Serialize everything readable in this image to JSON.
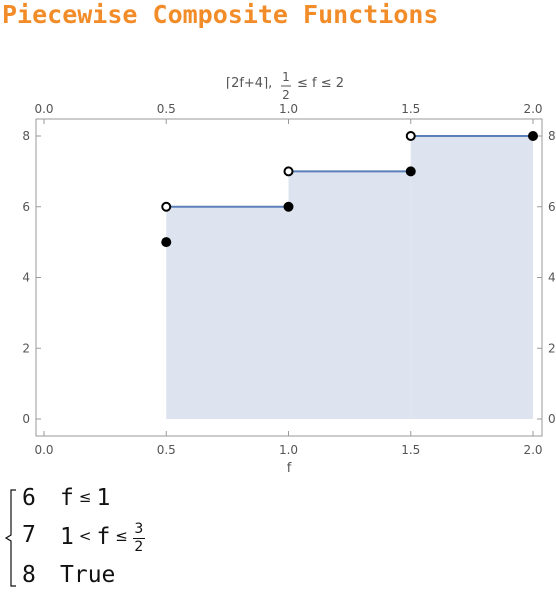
{
  "header": {
    "title": "Piecewise Composite Functions"
  },
  "chart_data": {
    "type": "step",
    "title_prefix": "⌈2f+4⌉,",
    "title_frac_num": "1",
    "title_frac_den": "2",
    "title_suffix": "≤ f ≤ 2",
    "xlabel": "f",
    "xlim": [
      0.0,
      2.0
    ],
    "ylim": [
      0,
      8
    ],
    "x_ticks": [
      "0.0",
      "0.5",
      "1.0",
      "1.5",
      "2.0"
    ],
    "y_ticks": [
      "0",
      "2",
      "4",
      "6",
      "8"
    ],
    "grid": false,
    "segments": [
      {
        "x0": 0.5,
        "x1": 1.0,
        "y": 6
      },
      {
        "x0": 1.0,
        "x1": 1.5,
        "y": 7
      },
      {
        "x0": 1.5,
        "x1": 2.0,
        "y": 8
      }
    ],
    "open_points": [
      {
        "x": 0.5,
        "y": 6
      },
      {
        "x": 1.0,
        "y": 7
      },
      {
        "x": 1.5,
        "y": 8
      }
    ],
    "closed_points": [
      {
        "x": 0.5,
        "y": 5
      },
      {
        "x": 1.0,
        "y": 6
      },
      {
        "x": 1.5,
        "y": 7
      },
      {
        "x": 2.0,
        "y": 8
      }
    ],
    "fill_color": "#dde4ef",
    "line_color": "#5b7fb8"
  },
  "piecewise": {
    "rows": [
      {
        "value": "6",
        "var": "f",
        "op": "≤",
        "bound": "1"
      },
      {
        "value": "7",
        "lower": "1",
        "op1": "<",
        "var": "f",
        "op2": "≤",
        "frac_num": "3",
        "frac_den": "2"
      },
      {
        "value": "8",
        "condition": "True"
      }
    ]
  }
}
